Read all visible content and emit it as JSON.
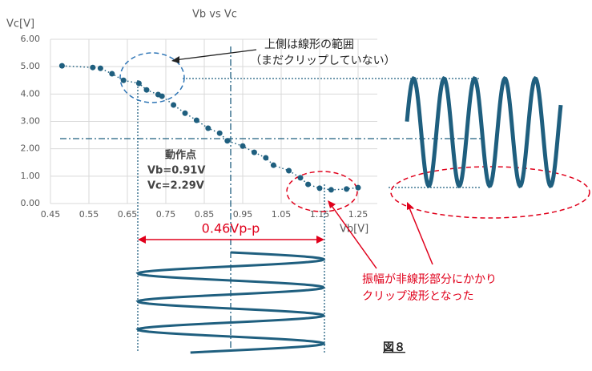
{
  "chart_data": {
    "type": "scatter",
    "title": "Vb vs Vc",
    "x_label": "Vb[V]",
    "y_label": "Vc[V]",
    "x": [
      0.48,
      0.56,
      0.58,
      0.61,
      0.64,
      0.68,
      0.7,
      0.73,
      0.74,
      0.77,
      0.8,
      0.83,
      0.86,
      0.89,
      0.91,
      0.95,
      0.98,
      1.01,
      1.03,
      1.07,
      1.1,
      1.12,
      1.15,
      1.18,
      1.22,
      1.25
    ],
    "values": [
      5.03,
      4.97,
      4.94,
      4.74,
      4.5,
      4.39,
      4.15,
      3.98,
      3.92,
      3.6,
      3.3,
      3.04,
      2.75,
      2.57,
      2.29,
      2.1,
      1.87,
      1.67,
      1.4,
      1.2,
      0.94,
      0.7,
      0.56,
      0.5,
      0.53,
      0.58
    ],
    "color": "#1f5f7f",
    "xlim": [
      0.45,
      1.3
    ],
    "xticks": [
      0.45,
      0.55,
      0.65,
      0.75,
      0.85,
      0.95,
      1.05,
      1.15,
      1.25
    ],
    "ylim": [
      0,
      6
    ],
    "yticks": [
      {
        "value": 0,
        "label": "0.00"
      },
      {
        "value": 1,
        "label": "1.00"
      },
      {
        "value": 2,
        "label": "2.00"
      },
      {
        "value": 3,
        "label": "3.00"
      },
      {
        "value": 4,
        "label": "4.00"
      },
      {
        "value": 5,
        "label": "5.00"
      },
      {
        "value": 6,
        "label": "6.00"
      }
    ],
    "grid": true,
    "annotations": {
      "linear": "上側は線形の範囲",
      "linear_note": "（まだクリップしていない）",
      "op_point": "動作点",
      "op_vb": "Vb=0.91V",
      "op_vc": "Vc=2.29V",
      "amplitude": "0.46Vp-p",
      "clip_1": "振幅が非線形部分にかかり",
      "clip_2": "クリップ波形となった",
      "figure": "図８"
    }
  }
}
